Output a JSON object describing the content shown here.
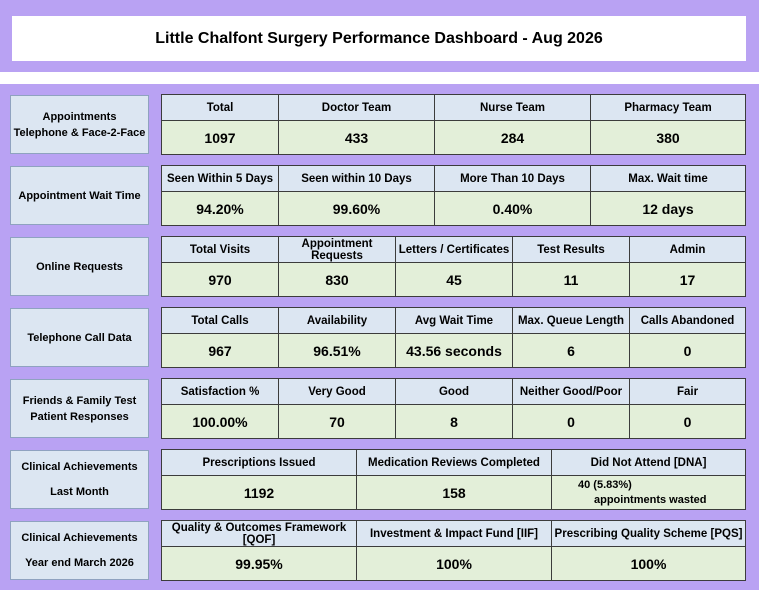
{
  "header": {
    "title": "Little Chalfont Surgery Performance Dashboard - Aug 2026"
  },
  "sections": [
    {
      "label": [
        "Appointments",
        "Telephone & Face-2-Face"
      ],
      "headers": [
        "Total",
        "Doctor Team",
        "Nurse Team",
        "Pharmacy Team"
      ],
      "values": [
        "1097",
        "433",
        "284",
        "380"
      ]
    },
    {
      "label": [
        "Appointment Wait Time"
      ],
      "headers": [
        "Seen Within 5 Days",
        "Seen within 10 Days",
        "More Than 10 Days",
        "Max. Wait time"
      ],
      "values": [
        "94.20%",
        "99.60%",
        "0.40%",
        "12 days"
      ]
    },
    {
      "label": [
        "Online Requests"
      ],
      "headers": [
        "Total Visits",
        "Appointment Requests",
        "Letters / Certificates",
        "Test Results",
        "Admin"
      ],
      "values": [
        "970",
        "830",
        "45",
        "11",
        "17"
      ]
    },
    {
      "label": [
        "Telephone Call Data"
      ],
      "headers": [
        "Total Calls",
        "Availability",
        "Avg Wait Time",
        "Max. Queue Length",
        "Calls Abandoned"
      ],
      "values": [
        "967",
        "96.51%",
        "43.56 seconds",
        "6",
        "0"
      ]
    },
    {
      "label": [
        "Friends & Family Test",
        "Patient Responses"
      ],
      "headers": [
        "Satisfaction %",
        "Very Good",
        "Good",
        "Neither Good/Poor",
        "Fair"
      ],
      "values": [
        "100.00%",
        "70",
        "8",
        "0",
        "0"
      ]
    },
    {
      "label": [
        "Clinical Achievements",
        "Last Month"
      ],
      "headers": [
        "Prescriptions Issued",
        "Medication Reviews Completed",
        "Did Not Attend [DNA]"
      ],
      "values": [
        "1192",
        "158",
        ""
      ],
      "dna": {
        "line1": "40 (5.83%)",
        "line2": "appointments wasted"
      }
    },
    {
      "label": [
        "Clinical Achievements",
        "Year end March 2026"
      ],
      "headers": [
        "Quality & Outcomes Framework [QOF]",
        "Investment & Impact Fund [IIF]",
        "Prescribing Quality Scheme [PQS]"
      ],
      "values": [
        "99.95%",
        "100%",
        "100%"
      ]
    }
  ]
}
